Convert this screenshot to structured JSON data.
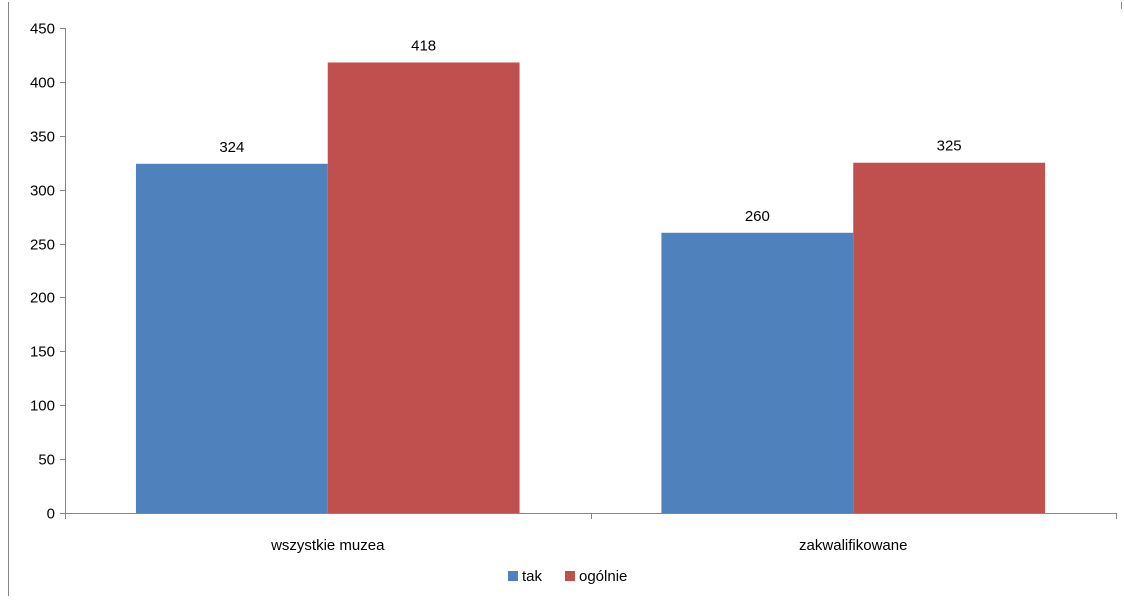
{
  "colors": {
    "tak": "#4F81BD",
    "ogolnie": "#C0504D",
    "axis": "#868686",
    "frame": "#868686"
  },
  "chart_data": {
    "type": "bar",
    "categories": [
      "wszystkie muzea",
      "zakwalifikowane"
    ],
    "series": [
      {
        "name": "tak",
        "values": [
          324,
          260
        ]
      },
      {
        "name": "ogólnie",
        "values": [
          418,
          325
        ]
      }
    ],
    "ylim": [
      0,
      450
    ],
    "yticks": [
      0,
      50,
      100,
      150,
      200,
      250,
      300,
      350,
      400,
      450
    ],
    "grid": false,
    "legend": "bottom",
    "data_labels": true
  }
}
